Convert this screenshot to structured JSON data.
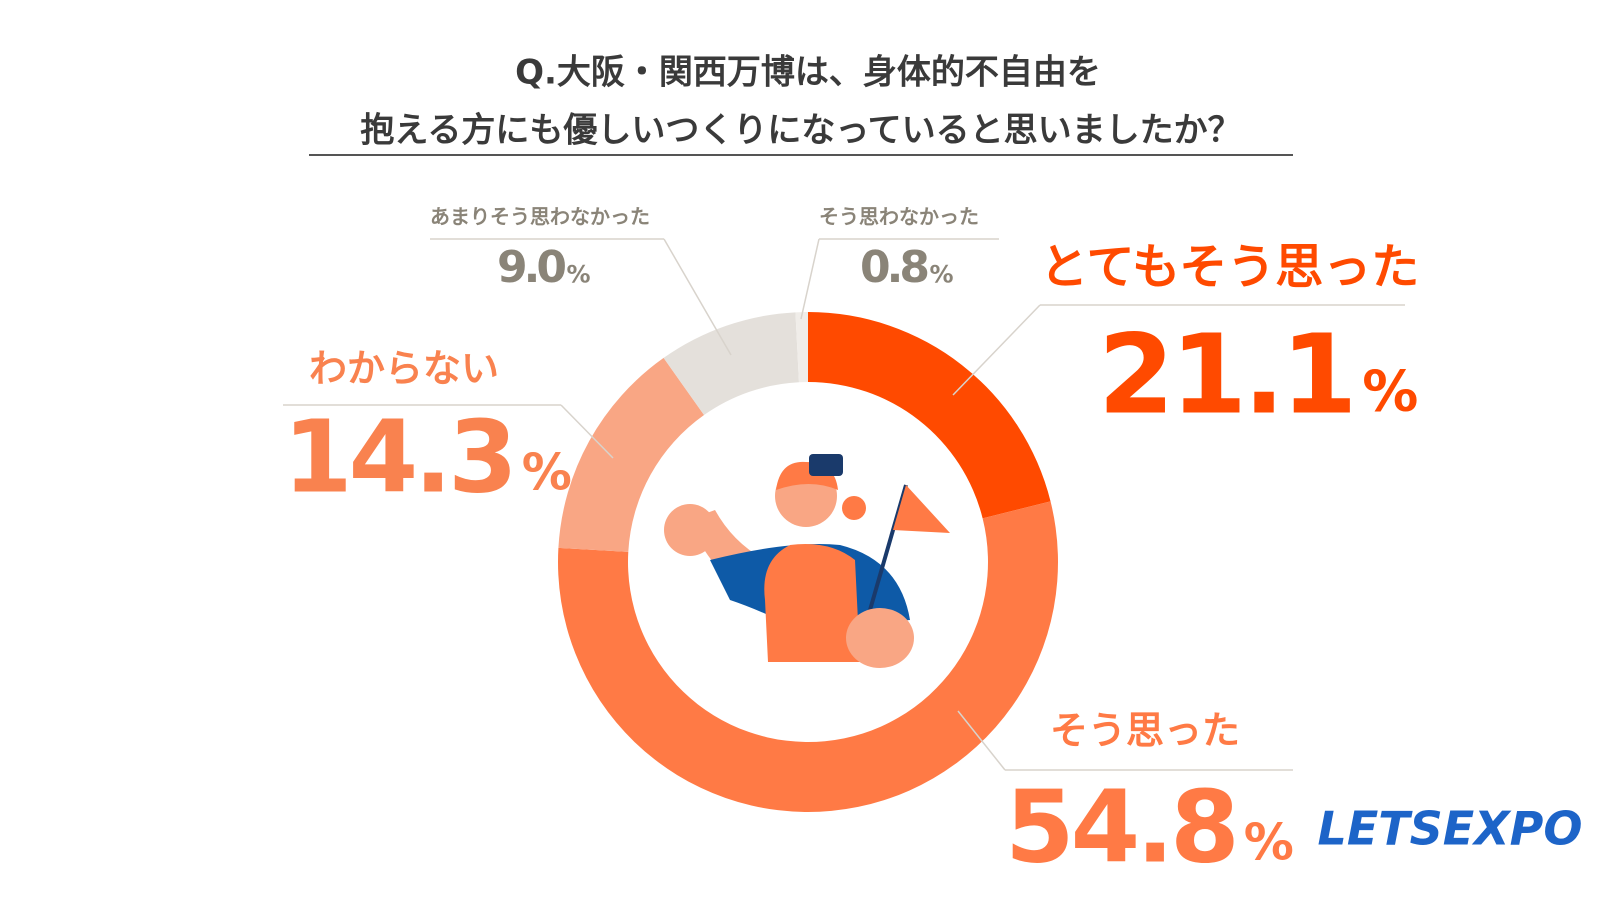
{
  "chart_data": {
    "type": "donut",
    "title": [
      "Q.大阪・関西万博は、身体的不自由を",
      "抱える方にも優しいつくりになっていると思いましたか？"
    ],
    "categories": [
      "とてもそう思った",
      "そう思った",
      "わからない",
      "あまりそう思わなかった",
      "そう思わなかった"
    ],
    "values": [
      21.1,
      54.8,
      14.3,
      9.0,
      0.8
    ],
    "value_labels": [
      "21.1",
      "54.8",
      "14.3",
      "9.0",
      "0.8"
    ],
    "unit": "%",
    "colors": [
      "#ff4a00",
      "#ff7a45",
      "#f9a684",
      "#e4e0db",
      "#f0ede9"
    ],
    "label_colors": [
      "#ff4a00",
      "#ff7a45",
      "#f9824f",
      "#8a8478",
      "#8a8478"
    ],
    "logo": "LETSEXPO"
  }
}
